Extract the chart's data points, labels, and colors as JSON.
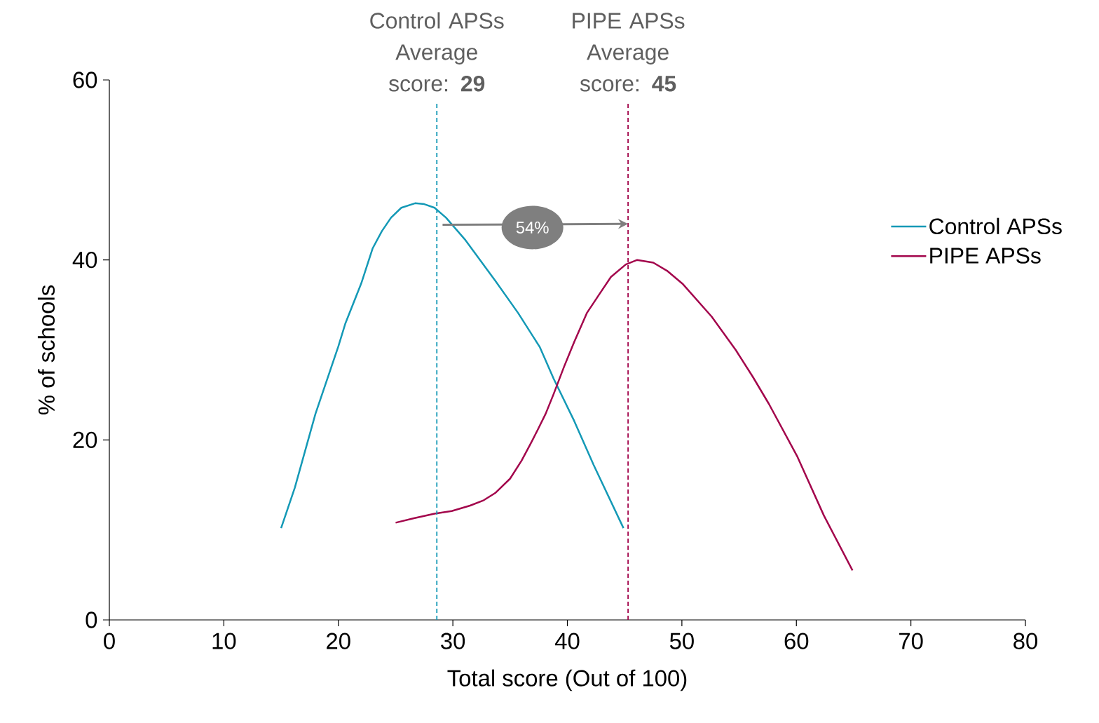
{
  "chart_data": {
    "type": "line",
    "xlabel": "Total score (Out of 100)",
    "ylabel": "% of schools",
    "xlim": [
      0,
      80
    ],
    "xticks": [
      0,
      10,
      20,
      30,
      40,
      50,
      60,
      70,
      80
    ],
    "ylim": [
      0,
      60
    ],
    "yticks": [
      0,
      20,
      40,
      60
    ],
    "grid": false,
    "legend": "right",
    "marker": "none",
    "line_style": "solid",
    "series": [
      {
        "name": "Control APSs",
        "color": "#1499b6",
        "x": [
          15.0,
          16.2,
          18.0,
          20.0,
          20.6,
          22.0,
          23.0,
          23.8,
          24.6,
          25.5,
          26.7,
          27.5,
          28.4,
          29.4,
          31.1,
          33.7,
          35.7,
          37.6,
          38.8,
          40.6,
          42.3,
          44.9
        ],
        "values": [
          10.2,
          14.7,
          22.9,
          30.4,
          32.9,
          37.4,
          41.3,
          43.2,
          44.7,
          45.8,
          46.3,
          46.2,
          45.8,
          44.7,
          42.2,
          37.7,
          34.1,
          30.3,
          26.8,
          22.1,
          17.2,
          10.2
        ]
      },
      {
        "name": "PIPE APSs",
        "color": "#a3064c",
        "x": [
          25.0,
          26.6,
          28.4,
          29.9,
          31.5,
          32.7,
          33.7,
          35.0,
          36.0,
          36.8,
          37.4,
          38.1,
          38.8,
          39.7,
          40.6,
          41.7,
          42.8,
          43.8,
          45.1,
          46.1,
          47.5,
          48.7,
          50.1,
          52.6,
          54.7,
          56.2,
          57.6,
          60.1,
          62.4,
          64.9
        ],
        "values": [
          10.8,
          11.3,
          11.8,
          12.1,
          12.7,
          13.3,
          14.1,
          15.7,
          17.7,
          19.6,
          21.1,
          22.9,
          25.1,
          28.1,
          30.9,
          34.1,
          36.2,
          38.1,
          39.5,
          40.0,
          39.7,
          38.8,
          37.3,
          33.7,
          30.0,
          27.0,
          24.0,
          18.1,
          11.6,
          5.5
        ]
      }
    ],
    "ref_lines": [
      {
        "axis": "x",
        "value": 28.6,
        "label": "Control APSs Average score: **29**",
        "color": "#1499b6",
        "line_style": "dashed"
      },
      {
        "axis": "x",
        "value": 45.3,
        "label": "PIPE APSs Average score: **45**",
        "color": "#a3064c",
        "line_style": "dashed"
      }
    ],
    "annotations": [
      "54%"
    ]
  }
}
